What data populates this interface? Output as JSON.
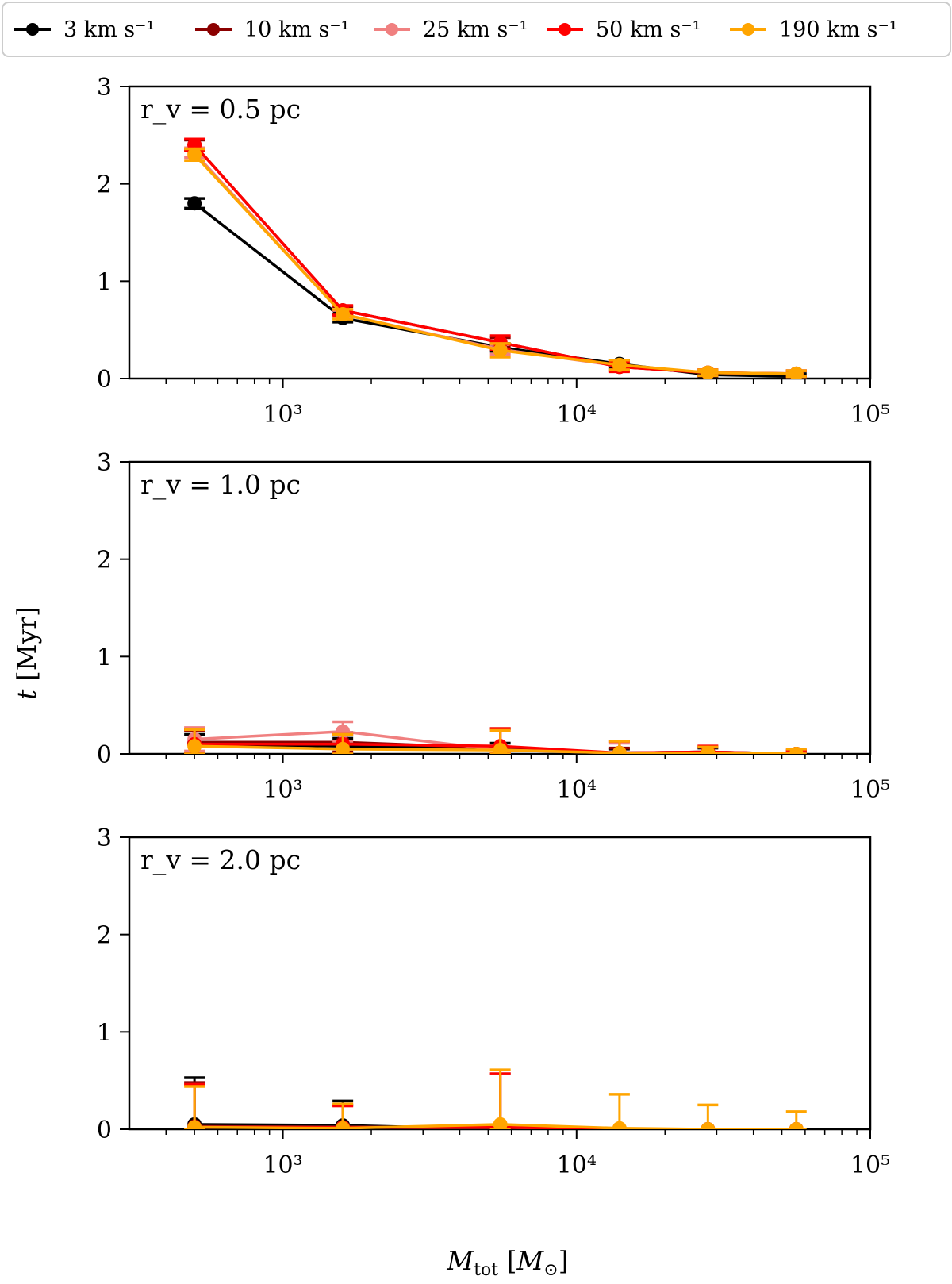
{
  "chart_data": {
    "type": "line",
    "legend": {
      "placement": "top",
      "entries": [
        {
          "key": "v3",
          "label": "3 km s⁻¹",
          "color": "#000000"
        },
        {
          "key": "v10",
          "label": "10 km s⁻¹",
          "color": "#8b0000"
        },
        {
          "key": "v25",
          "label": "25 km s⁻¹",
          "color": "#f08080"
        },
        {
          "key": "v50",
          "label": "50 km s⁻¹",
          "color": "#ff0000"
        },
        {
          "key": "v190",
          "label": "190 km s⁻¹",
          "color": "#ffa500"
        }
      ]
    },
    "xlabel": "M_tot [M_⊙]",
    "ylabel": "t [Myr]",
    "xscale": "log",
    "xlim": [
      300,
      100000
    ],
    "ylim": [
      0,
      3
    ],
    "xticks": [
      {
        "value": 1000,
        "label": "10³"
      },
      {
        "value": 10000,
        "label": "10⁴"
      },
      {
        "value": 100000,
        "label": "10⁵"
      }
    ],
    "yticks": [
      {
        "value": 0,
        "label": "0"
      },
      {
        "value": 1,
        "label": "1"
      },
      {
        "value": 2,
        "label": "2"
      },
      {
        "value": 3,
        "label": "3"
      }
    ],
    "x": [
      500,
      1600,
      5500,
      14000,
      28000,
      56000
    ],
    "panels": [
      {
        "label": "r_v = 0.5 pc",
        "series": [
          {
            "key": "v3",
            "values": [
              1.8,
              0.62,
              0.32,
              0.15,
              0.04,
              0.02
            ],
            "errors": [
              0.05,
              0.04,
              0.04,
              0.04,
              0.03,
              0.03
            ]
          },
          {
            "key": "v10",
            "values": [
              2.4,
              0.7,
              0.37,
              0.12,
              0.06,
              0.05
            ],
            "errors": [
              0.05,
              0.04,
              0.05,
              0.04,
              0.03,
              0.03
            ]
          },
          {
            "key": "v25",
            "values": [
              2.32,
              0.66,
              0.3,
              0.13,
              0.06,
              0.05
            ],
            "errors": [
              0.05,
              0.04,
              0.05,
              0.04,
              0.03,
              0.03
            ]
          },
          {
            "key": "v50",
            "values": [
              2.4,
              0.7,
              0.37,
              0.12,
              0.06,
              0.05
            ],
            "errors": [
              0.06,
              0.05,
              0.07,
              0.05,
              0.03,
              0.03
            ]
          },
          {
            "key": "v190",
            "values": [
              2.3,
              0.66,
              0.29,
              0.14,
              0.06,
              0.05
            ],
            "errors": [
              0.06,
              0.05,
              0.07,
              0.05,
              0.03,
              0.03
            ]
          }
        ]
      },
      {
        "label": "r_v = 1.0 pc",
        "series": [
          {
            "key": "v3",
            "values": [
              0.1,
              0.08,
              0.05,
              0.01,
              0.02,
              0.0
            ],
            "errors": [
              0.1,
              0.08,
              0.06,
              0.04,
              0.04,
              0.02
            ]
          },
          {
            "key": "v10",
            "values": [
              0.12,
              0.12,
              0.06,
              0.01,
              0.02,
              0.0
            ],
            "errors": [
              0.12,
              0.1,
              0.2,
              0.05,
              0.05,
              0.03
            ]
          },
          {
            "key": "v25",
            "values": [
              0.15,
              0.23,
              0.04,
              0.01,
              0.02,
              0.0
            ],
            "errors": [
              0.12,
              0.1,
              0.2,
              0.1,
              0.05,
              0.03
            ]
          },
          {
            "key": "v50",
            "values": [
              0.1,
              0.1,
              0.08,
              0.01,
              0.02,
              0.0
            ],
            "errors": [
              0.15,
              0.1,
              0.18,
              0.12,
              0.06,
              0.04
            ]
          },
          {
            "key": "v190",
            "values": [
              0.08,
              0.05,
              0.04,
              0.01,
              0.01,
              0.0
            ],
            "errors": [
              0.17,
              0.15,
              0.2,
              0.12,
              0.06,
              0.05
            ]
          }
        ]
      },
      {
        "label": "r_v = 2.0 pc",
        "series": [
          {
            "key": "v3",
            "values": [
              0.05,
              0.04,
              0.0,
              0.0,
              0.0,
              0.0
            ],
            "errors": [
              0.48,
              0.25,
              0.0,
              0.0,
              0.0,
              0.0
            ]
          },
          {
            "key": "v10",
            "values": [
              0.03,
              0.02,
              0.01,
              0.0,
              0.0,
              0.0
            ],
            "errors": [
              0.45,
              0.23,
              0.56,
              0.0,
              0.0,
              0.0
            ]
          },
          {
            "key": "v25",
            "values": [
              0.02,
              0.02,
              0.02,
              0.0,
              0.0,
              0.0
            ],
            "errors": [
              0.44,
              0.22,
              0.55,
              0.0,
              0.0,
              0.0
            ]
          },
          {
            "key": "v50",
            "values": [
              0.02,
              0.02,
              0.02,
              0.0,
              0.0,
              0.0
            ],
            "errors": [
              0.44,
              0.22,
              0.55,
              0.0,
              0.0,
              0.0
            ]
          },
          {
            "key": "v190",
            "values": [
              0.02,
              0.01,
              0.05,
              0.01,
              0.0,
              0.0
            ],
            "errors": [
              0.42,
              0.25,
              0.56,
              0.35,
              0.25,
              0.18
            ]
          }
        ]
      }
    ]
  }
}
